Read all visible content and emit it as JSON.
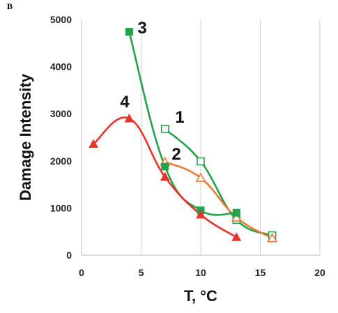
{
  "panel_label": "B",
  "chart_data": {
    "type": "line",
    "xlabel": "T, °C",
    "ylabel": "Damage Intensity",
    "xlim": [
      0,
      20
    ],
    "ylim": [
      0,
      5000
    ],
    "xticks": [
      0,
      5,
      10,
      15,
      20
    ],
    "yticks": [
      0,
      1000,
      2000,
      3000,
      4000,
      5000
    ],
    "grid": "vertical",
    "series": [
      {
        "name": "1",
        "color": "#22a34a",
        "marker": "square-open",
        "x": [
          7,
          10,
          13,
          16
        ],
        "y": [
          2680,
          1990,
          750,
          420
        ]
      },
      {
        "name": "2",
        "color": "#e87a33",
        "marker": "triangle-open",
        "x": [
          7,
          10,
          13,
          16
        ],
        "y": [
          1980,
          1640,
          800,
          360
        ]
      },
      {
        "name": "3",
        "color": "#22a34a",
        "marker": "square-filled",
        "x": [
          4,
          7,
          10,
          13
        ],
        "y": [
          4740,
          1880,
          950,
          900
        ]
      },
      {
        "name": "4",
        "color": "#e8322a",
        "marker": "triangle-filled",
        "x": [
          1,
          4,
          7,
          10,
          13
        ],
        "y": [
          2360,
          2900,
          1660,
          860,
          380
        ]
      }
    ]
  }
}
